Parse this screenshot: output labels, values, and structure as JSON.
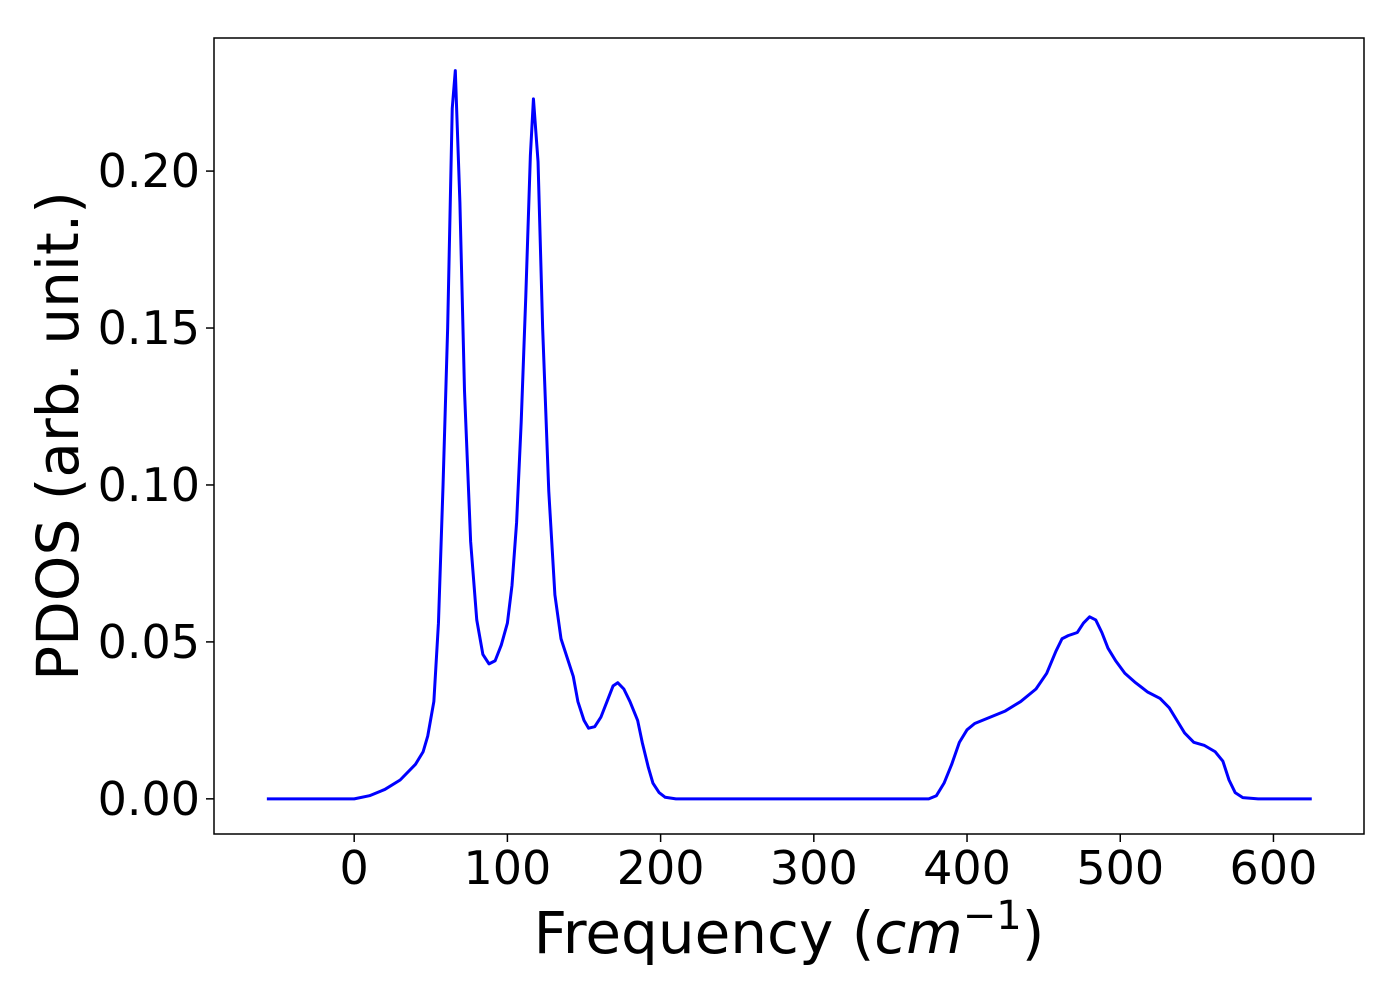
{
  "chart_data": {
    "type": "line",
    "xlabel": [
      "Frequency (",
      "cm",
      "−1",
      ")"
    ],
    "ylabel": "PDOS (arb. unit.)",
    "x": [
      -57,
      0,
      10,
      20,
      30,
      40,
      45,
      48,
      52,
      55,
      58,
      61,
      64,
      66,
      69,
      72,
      76,
      80,
      84,
      88,
      92,
      96,
      100,
      103,
      106,
      109,
      112,
      115,
      117,
      120,
      123,
      127,
      131,
      135,
      139,
      143,
      146,
      150,
      153,
      157,
      161,
      165,
      169,
      172,
      176,
      180,
      185,
      188,
      192,
      195,
      199,
      203,
      210,
      375,
      380,
      385,
      390,
      395,
      400,
      405,
      415,
      425,
      435,
      445,
      452,
      458,
      462,
      466,
      472,
      476,
      480,
      484,
      488,
      492,
      497,
      503,
      510,
      518,
      526,
      532,
      537,
      542,
      548,
      555,
      562,
      567,
      571,
      575,
      580,
      590,
      625
    ],
    "series": [
      {
        "name": "PDOS",
        "color": "#0000ff",
        "values": [
          0,
          0,
          0.001,
          0.003,
          0.006,
          0.011,
          0.015,
          0.02,
          0.031,
          0.056,
          0.1,
          0.15,
          0.22,
          0.232,
          0.19,
          0.13,
          0.082,
          0.057,
          0.046,
          0.043,
          0.044,
          0.049,
          0.056,
          0.068,
          0.088,
          0.12,
          0.16,
          0.205,
          0.223,
          0.203,
          0.15,
          0.098,
          0.065,
          0.051,
          0.045,
          0.039,
          0.031,
          0.025,
          0.0225,
          0.023,
          0.026,
          0.031,
          0.036,
          0.037,
          0.035,
          0.031,
          0.025,
          0.018,
          0.01,
          0.005,
          0.002,
          0.0005,
          0,
          0,
          0.001,
          0.005,
          0.011,
          0.018,
          0.022,
          0.024,
          0.026,
          0.028,
          0.031,
          0.035,
          0.04,
          0.047,
          0.051,
          0.052,
          0.053,
          0.056,
          0.058,
          0.057,
          0.053,
          0.048,
          0.044,
          0.04,
          0.037,
          0.034,
          0.032,
          0.029,
          0.025,
          0.021,
          0.018,
          0.017,
          0.015,
          0.012,
          0.006,
          0.002,
          0.0004,
          0,
          0
        ]
      }
    ],
    "xlim": [
      -91.5,
      659.1
    ],
    "ylim": [
      -0.0112,
      0.2424
    ],
    "xticks": [
      0,
      100,
      200,
      300,
      400,
      500,
      600
    ],
    "yticks": [
      {
        "value": 0,
        "label": "0.00"
      },
      {
        "value": 0.05,
        "label": "0.05"
      },
      {
        "value": 0.1,
        "label": "0.10"
      },
      {
        "value": 0.15,
        "label": "0.15"
      },
      {
        "value": 0.2,
        "label": "0.20"
      }
    ]
  }
}
